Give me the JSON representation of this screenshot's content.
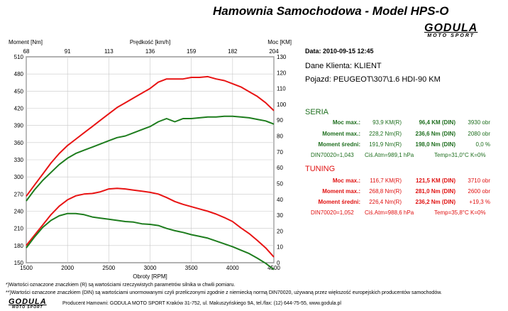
{
  "header": {
    "title": "Hamownia Samochodowa   -   Model HPS-O",
    "logo_word": "GODULA",
    "logo_sub": "MOTO SPORT"
  },
  "info": {
    "date": "Data: 2010-09-15  12:45",
    "client": "Dane Klienta: KLIENT",
    "vehicle": "Pojazd: PEUGEOT\\307\\1.6 HDI-90 KM"
  },
  "seria": {
    "title": "SERIA",
    "rows": [
      {
        "label": "Moc max.:",
        "v1": "93,9 KM(R)",
        "v2": "96,4 KM (DIN)",
        "v3": "3930 obr"
      },
      {
        "label": "Moment max.:",
        "v1": "228,2 Nm(R)",
        "v2": "236,6 Nm (DIN)",
        "v3": "2080 obr"
      },
      {
        "label": "Moment średni:",
        "v1": "191,9 Nm(R)",
        "v2": "198,0 Nm (DIN)",
        "v3": "0,0 %"
      }
    ],
    "din": "DIN70020=1,043",
    "atm": "Ciś.Atm=989,1 hPa",
    "temp": "Temp=31,0°C  K=0%"
  },
  "tuning": {
    "title": "TUNING",
    "rows": [
      {
        "label": "Moc max.:",
        "v1": "116,7 KM(R)",
        "v2": "121,5 KM (DIN)",
        "v3": "3710 obr"
      },
      {
        "label": "Moment max.:",
        "v1": "268,8 Nm(R)",
        "v2": "281,0 Nm (DIN)",
        "v3": "2600 obr"
      },
      {
        "label": "Moment średni:",
        "v1": "226,4 Nm(R)",
        "v2": "236,2 Nm (DIN)",
        "v3": "+19,3 %"
      }
    ],
    "din": "DIN70020=1,052",
    "atm": "Ciś.Atm=988,6 hPa",
    "temp": "Temp=35,8°C  K=0%"
  },
  "footer": {
    "note1": "*)Wartości oznaczone znaczkiem (R) są wartościami rzeczywistych parametrów silnika w chwili pomiaru.",
    "note2": "**)Wartości oznaczone znaczkiem (DIN) są wartościami unormowanymi czyli przeliczonymi zgodnie z niemiecką normą DIN70020, używaną przez większość europejskich producentów samochodów.",
    "producer": "Producent Hamowni: GODULA MOTO SPORT Kraków 31-752, ul. Makuszyńskiego 9A, tel./fax: (12) 644-75-55, www.godula.pl"
  },
  "colors": {
    "seria": "#1e7d1e",
    "tuning": "#e81414",
    "grid": "#c8c8c8"
  },
  "chart_data": {
    "type": "line",
    "xlabel": "Obroty [RPM]",
    "top_label": "Prędkość [km/h]",
    "ylabel_left": "Moment [Nm]",
    "ylabel_right": "Moc [KM]",
    "xlim": [
      1500,
      4500
    ],
    "ylim_left": [
      150,
      510
    ],
    "ylim_right": [
      0,
      130
    ],
    "x_ticks": [
      1500,
      2000,
      2500,
      3000,
      3500,
      4000,
      4500
    ],
    "y_left_ticks": [
      150,
      180,
      210,
      240,
      270,
      300,
      330,
      360,
      390,
      420,
      450,
      480,
      510
    ],
    "y_right_ticks": [
      0,
      10,
      20,
      30,
      40,
      50,
      60,
      70,
      80,
      90,
      100,
      110,
      120,
      130
    ],
    "speed_ticks": [
      "68",
      "91",
      "113",
      "136",
      "159",
      "182",
      "204"
    ],
    "series": [
      {
        "name": "TUNING",
        "measure": "power",
        "axis": "right",
        "color": "#e81414",
        "x": [
          1500,
          1600,
          1700,
          1800,
          1900,
          2000,
          2100,
          2200,
          2300,
          2400,
          2500,
          2600,
          2700,
          2800,
          2900,
          3000,
          3100,
          3200,
          3300,
          3400,
          3500,
          3600,
          3700,
          3800,
          3900,
          4000,
          4100,
          4200,
          4300,
          4400,
          4500
        ],
        "y": [
          42,
          49,
          56,
          63,
          69,
          74,
          78,
          82,
          86,
          90,
          94,
          98,
          101,
          104,
          107,
          110,
          114,
          116,
          116,
          116,
          117,
          117,
          117.5,
          116,
          115,
          113,
          111,
          108,
          105,
          101,
          96
        ]
      },
      {
        "name": "SERIA",
        "measure": "power",
        "axis": "right",
        "color": "#1e7d1e",
        "x": [
          1500,
          1600,
          1700,
          1800,
          1900,
          2000,
          2100,
          2200,
          2300,
          2400,
          2500,
          2600,
          2700,
          2800,
          2900,
          3000,
          3100,
          3200,
          3300,
          3400,
          3500,
          3600,
          3700,
          3800,
          3900,
          4000,
          4100,
          4200,
          4300,
          4400,
          4500
        ],
        "y": [
          39,
          46,
          52,
          57,
          62,
          66,
          69,
          71,
          73,
          75,
          77,
          79,
          80,
          82,
          84,
          86,
          89,
          91,
          89,
          91,
          91,
          91.5,
          92,
          92,
          92.5,
          92.5,
          92,
          91.5,
          90.5,
          89.5,
          87.5
        ]
      },
      {
        "name": "TUNING",
        "measure": "torque",
        "axis": "left",
        "color": "#e81414",
        "x": [
          1500,
          1600,
          1700,
          1800,
          1900,
          2000,
          2100,
          2200,
          2300,
          2400,
          2500,
          2600,
          2700,
          2800,
          2900,
          3000,
          3100,
          3200,
          3300,
          3400,
          3500,
          3600,
          3700,
          3800,
          3900,
          4000,
          4100,
          4200,
          4300,
          4400,
          4500
        ],
        "y": [
          180,
          198,
          216,
          234,
          249,
          260,
          267,
          270,
          271,
          274,
          279,
          280,
          279,
          277,
          275,
          273,
          270,
          264,
          257,
          252,
          248,
          244,
          240,
          235,
          229,
          222,
          211,
          201,
          189,
          176,
          160
        ]
      },
      {
        "name": "SERIA",
        "measure": "torque",
        "axis": "left",
        "color": "#1e7d1e",
        "x": [
          1500,
          1600,
          1700,
          1800,
          1900,
          2000,
          2100,
          2200,
          2300,
          2400,
          2500,
          2600,
          2700,
          2800,
          2900,
          3000,
          3100,
          3200,
          3300,
          3400,
          3500,
          3600,
          3700,
          3800,
          3900,
          4000,
          4100,
          4200,
          4300,
          4400,
          4500
        ],
        "y": [
          176,
          195,
          212,
          224,
          232,
          236,
          236,
          234,
          230,
          228,
          226,
          224,
          222,
          221,
          218,
          217,
          215,
          210,
          206,
          203,
          199,
          196,
          193,
          188,
          183,
          178,
          172,
          166,
          158,
          149,
          138
        ]
      }
    ]
  }
}
